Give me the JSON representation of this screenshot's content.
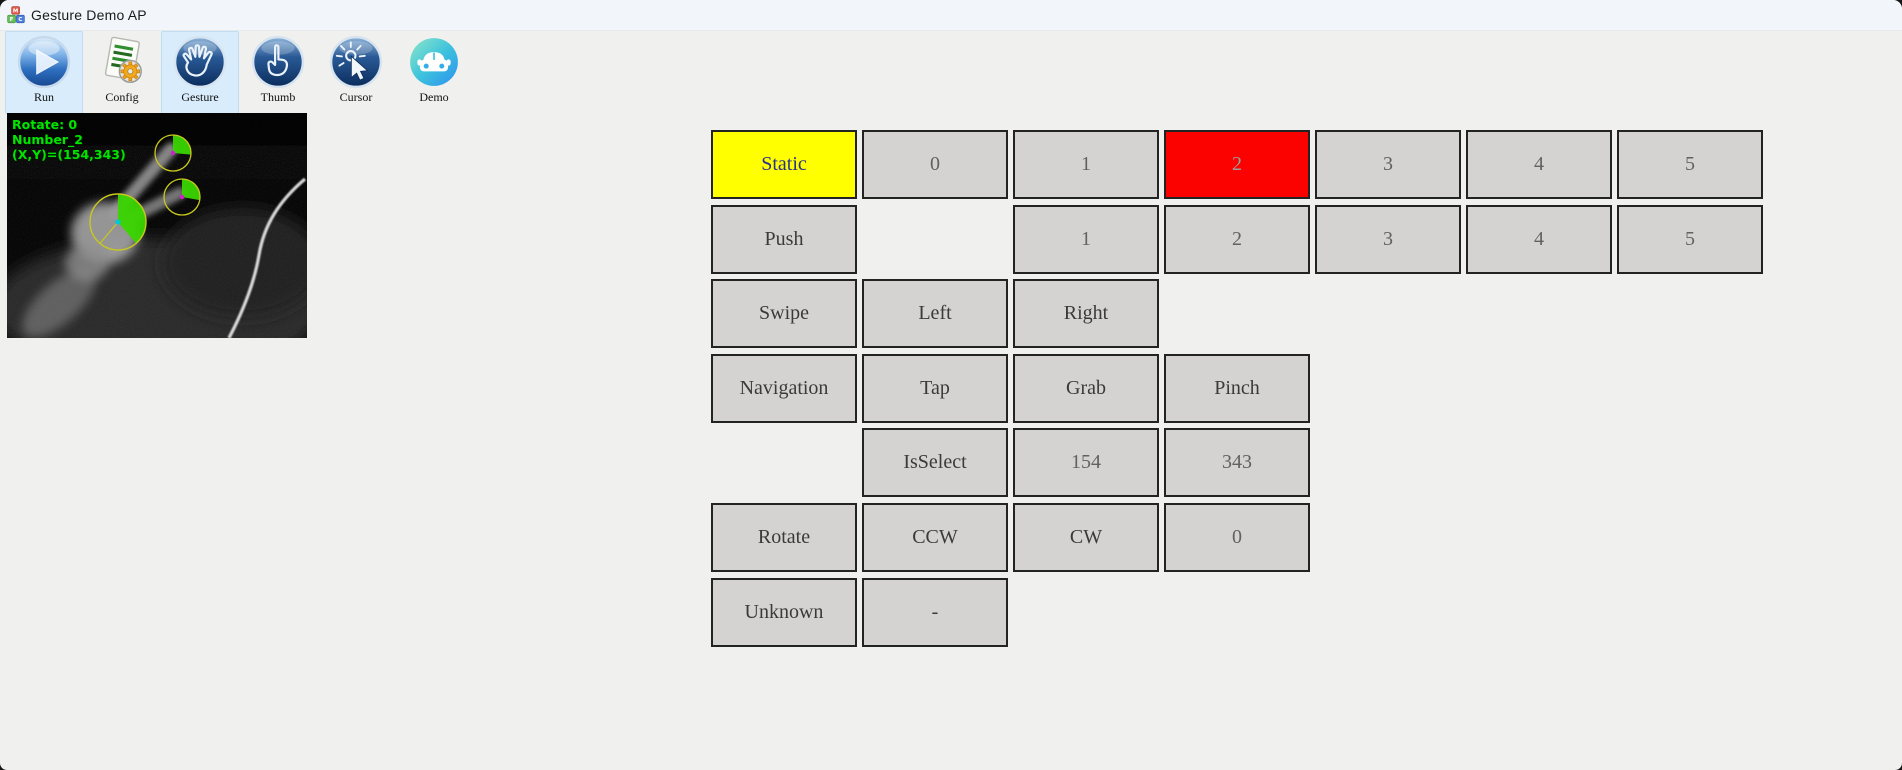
{
  "window": {
    "title": "Gesture Demo AP"
  },
  "toolbar": {
    "items": [
      {
        "label": "Run",
        "icon": "run-play-icon",
        "active": true
      },
      {
        "label": "Config",
        "icon": "config-document-gear-icon",
        "active": false
      },
      {
        "label": "Gesture",
        "icon": "gesture-open-hand-icon",
        "active": true
      },
      {
        "label": "Thumb",
        "icon": "thumb-point-up-icon",
        "active": false
      },
      {
        "label": "Cursor",
        "icon": "cursor-click-icon",
        "active": false
      },
      {
        "label": "Demo",
        "icon": "car-demo-icon",
        "active": false
      }
    ]
  },
  "preview": {
    "overlay": {
      "lines": [
        "Rotate: 0",
        "Number_2",
        "(X,Y)=(154,343)"
      ],
      "rotate_value": "0",
      "gesture_name": "Number_2",
      "xy_value": "(154,343)",
      "text_color": "#00e400"
    },
    "annotation_colors": {
      "circle_outline": "#c9c91e",
      "pie_fill": "#3bd500",
      "center_dot_large": "#00c8d2",
      "center_dot_small": "#cf1fcf"
    }
  },
  "grid": {
    "rows": [
      {
        "name": "static",
        "cells": [
          {
            "label": "Static",
            "col": 0,
            "variant": "yellow"
          },
          {
            "label": "0",
            "col": 1,
            "kind": "digit"
          },
          {
            "label": "1",
            "col": 2,
            "kind": "digit"
          },
          {
            "label": "2",
            "col": 3,
            "variant": "red",
            "kind": "digit"
          },
          {
            "label": "3",
            "col": 4,
            "kind": "digit"
          },
          {
            "label": "4",
            "col": 5,
            "kind": "digit"
          },
          {
            "label": "5",
            "col": 6,
            "kind": "digit"
          }
        ]
      },
      {
        "name": "push",
        "cells": [
          {
            "label": "Push",
            "col": 0
          },
          {
            "label": "1",
            "col": 2,
            "kind": "digit"
          },
          {
            "label": "2",
            "col": 3,
            "kind": "digit"
          },
          {
            "label": "3",
            "col": 4,
            "kind": "digit"
          },
          {
            "label": "4",
            "col": 5,
            "kind": "digit"
          },
          {
            "label": "5",
            "col": 6,
            "kind": "digit"
          }
        ]
      },
      {
        "name": "swipe",
        "cells": [
          {
            "label": "Swipe",
            "col": 0
          },
          {
            "label": "Left",
            "col": 1
          },
          {
            "label": "Right",
            "col": 2
          }
        ]
      },
      {
        "name": "navigation",
        "cells": [
          {
            "label": "Navigation",
            "col": 0
          },
          {
            "label": "Tap",
            "col": 1
          },
          {
            "label": "Grab",
            "col": 2
          },
          {
            "label": "Pinch",
            "col": 3
          }
        ]
      },
      {
        "name": "select",
        "cells": [
          {
            "label": "IsSelect",
            "col": 1
          },
          {
            "label": "154",
            "col": 2,
            "kind": "digit"
          },
          {
            "label": "343",
            "col": 3,
            "kind": "digit"
          }
        ]
      },
      {
        "name": "rotate",
        "cells": [
          {
            "label": "Rotate",
            "col": 0
          },
          {
            "label": "CCW",
            "col": 1
          },
          {
            "label": "CW",
            "col": 2
          },
          {
            "label": "0",
            "col": 3,
            "kind": "digit"
          }
        ]
      },
      {
        "name": "unknown",
        "cells": [
          {
            "label": "Unknown",
            "col": 0
          },
          {
            "label": "-",
            "col": 1
          }
        ]
      }
    ]
  },
  "colors": {
    "window_bg": "#f0f0ee",
    "titlebar_bg": "#f2f6fa",
    "toolbar_active_bg": "#d8ecfb",
    "button_bg": "#d5d3d1",
    "button_border": "#232323",
    "static_highlight": "#ffff00",
    "active_gesture_highlight": "#fb0100"
  }
}
